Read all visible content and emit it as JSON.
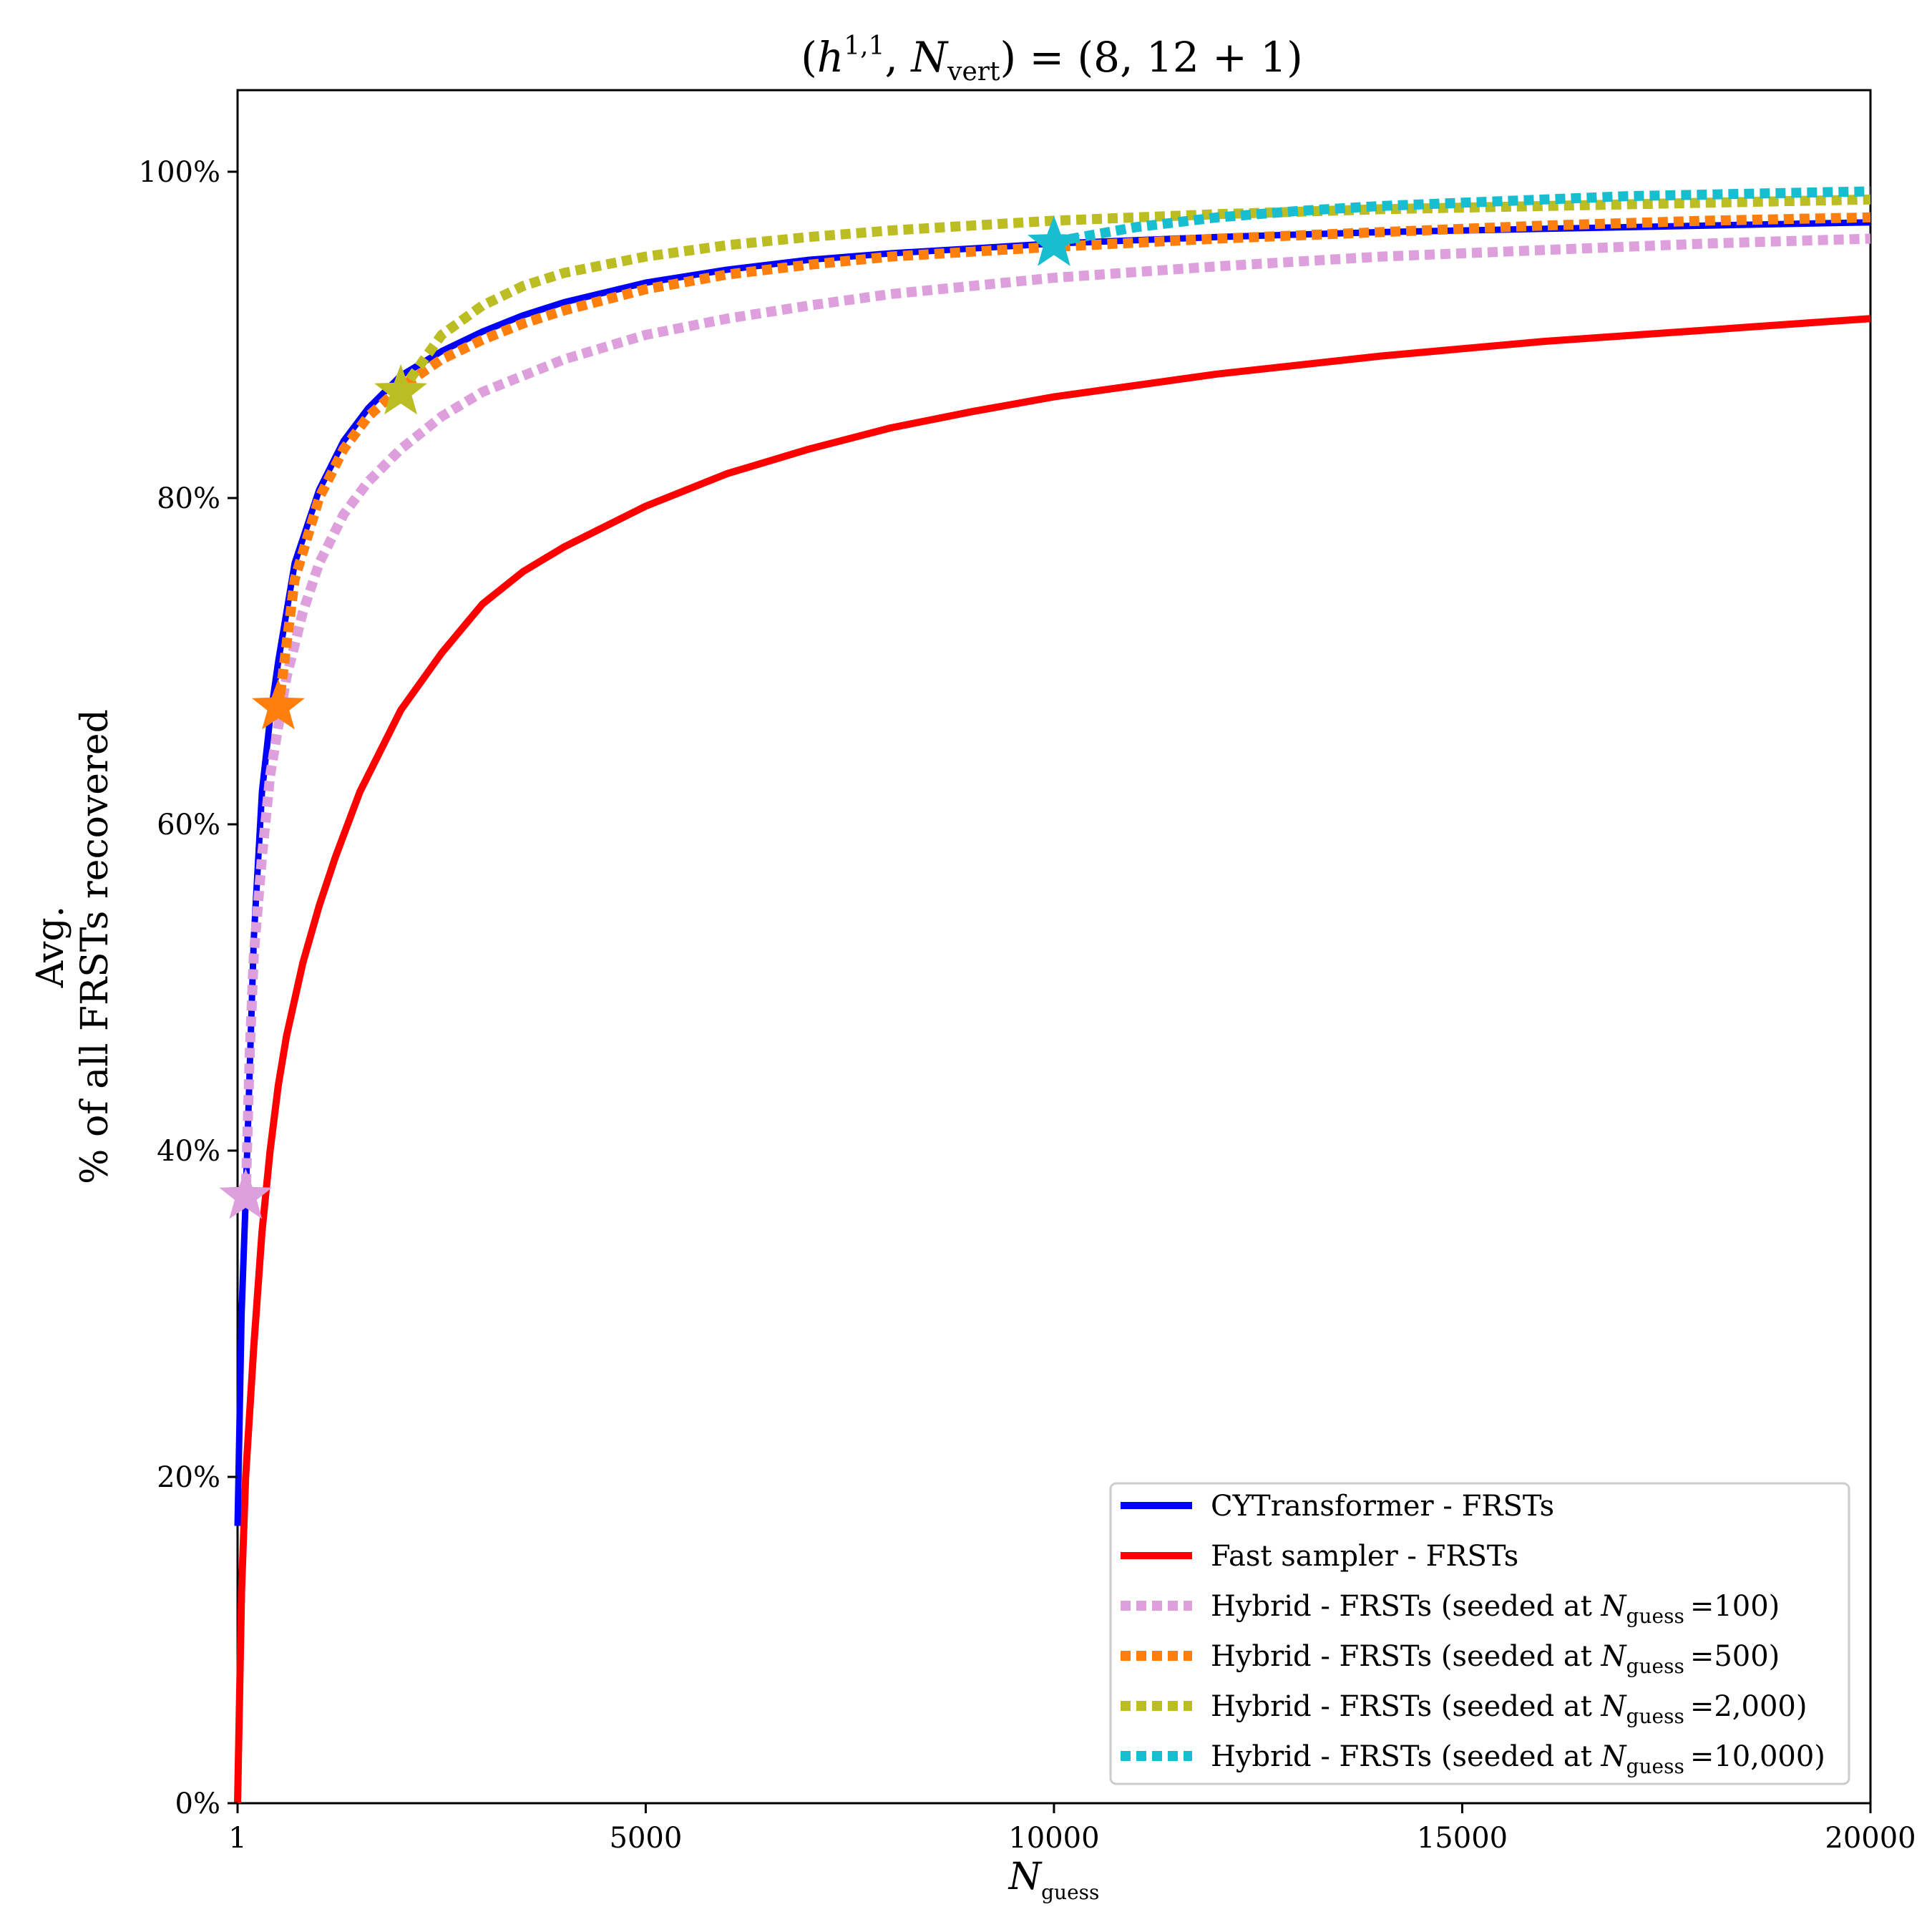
{
  "chart_data": {
    "type": "line",
    "title": "(h^{1,1}, N_vert) = (8, 12 + 1)",
    "title_parts": {
      "open": "(",
      "h": "h",
      "h_sup": "1,1",
      "comma": ", ",
      "N": "N",
      "N_sub": "vert",
      "rest": ") = (8, 12 + 1)"
    },
    "xlabel": "N_guess",
    "xlabel_parts": {
      "N": "N",
      "sub": "guess"
    },
    "ylabel_line1": "Avg.",
    "ylabel_line2": "% of all FRSTs recovered",
    "xlim": [
      1,
      20000
    ],
    "ylim": [
      0,
      105
    ],
    "xticks": [
      1,
      5000,
      10000,
      15000,
      20000
    ],
    "xtick_labels": [
      "1",
      "5000",
      "10000",
      "15000",
      "20000"
    ],
    "yticks": [
      0,
      20,
      40,
      60,
      80,
      100
    ],
    "ytick_labels": [
      "0%",
      "20%",
      "40%",
      "60%",
      "80%",
      "100%"
    ],
    "grid": false,
    "legend_position": "lower-right",
    "series": [
      {
        "name": "CYTransformer - FRSTs",
        "label_text": "CYTransformer - FRSTs",
        "color": "#0000ff",
        "style": "solid",
        "x": [
          1,
          50,
          100,
          150,
          200,
          300,
          400,
          500,
          700,
          1000,
          1300,
          1600,
          2000,
          2500,
          3000,
          3500,
          4000,
          5000,
          6000,
          7000,
          8000,
          9000,
          10000,
          12000,
          14000,
          16000,
          18000,
          20000
        ],
        "y": [
          17,
          30,
          37,
          45,
          53,
          62,
          66.5,
          70,
          76,
          80.5,
          83.5,
          85.5,
          87.5,
          89,
          90.2,
          91.2,
          92,
          93.2,
          94,
          94.6,
          95,
          95.3,
          95.6,
          96,
          96.3,
          96.5,
          96.7,
          96.9
        ]
      },
      {
        "name": "Fast sampler - FRSTs",
        "label_text": "Fast sampler - FRSTs",
        "color": "#ff0000",
        "style": "solid",
        "x": [
          1,
          50,
          100,
          200,
          300,
          400,
          500,
          600,
          800,
          1000,
          1200,
          1500,
          2000,
          2500,
          3000,
          3500,
          4000,
          5000,
          6000,
          7000,
          8000,
          9000,
          10000,
          12000,
          14000,
          16000,
          18000,
          20000
        ],
        "y": [
          0,
          13,
          20,
          28,
          35,
          40,
          44,
          47,
          51.5,
          55,
          58,
          62,
          67,
          70.5,
          73.5,
          75.5,
          77,
          79.5,
          81.5,
          83,
          84.3,
          85.3,
          86.2,
          87.6,
          88.7,
          89.6,
          90.3,
          91
        ]
      },
      {
        "name": "Hybrid - FRSTs (seeded at N_guess =100)",
        "label_text": "Hybrid - FRSTs (seeded at ",
        "label_N": "N",
        "label_sub": "guess",
        "label_val": "=100)",
        "color": "#dda0dd",
        "style": "dotted",
        "x": [
          100,
          150,
          200,
          300,
          400,
          500,
          600,
          700,
          800,
          1000,
          1300,
          1600,
          2000,
          2500,
          3000,
          3500,
          4000,
          5000,
          6000,
          7000,
          8000,
          9000,
          10000,
          12000,
          14000,
          16000,
          18000,
          20000
        ],
        "y": [
          37,
          46,
          52,
          58,
          63,
          66,
          69,
          71,
          73,
          76,
          79,
          81,
          83,
          85,
          86.5,
          87.5,
          88.5,
          90,
          91,
          91.8,
          92.5,
          93,
          93.5,
          94.2,
          94.8,
          95.2,
          95.6,
          95.9
        ]
      },
      {
        "name": "Hybrid - FRSTs (seeded at N_guess =500)",
        "label_text": "Hybrid - FRSTs (seeded at ",
        "label_N": "N",
        "label_sub": "guess",
        "label_val": "=500)",
        "color": "#ff7f0e",
        "style": "dotted",
        "x": [
          500,
          700,
          1000,
          1300,
          1600,
          2000,
          2500,
          3000,
          3500,
          4000,
          5000,
          6000,
          7000,
          8000,
          9000,
          10000,
          12000,
          14000,
          16000,
          18000,
          20000
        ],
        "y": [
          67,
          75,
          80,
          83,
          85,
          86.8,
          88.5,
          89.7,
          90.7,
          91.5,
          92.8,
          93.7,
          94.3,
          94.8,
          95.1,
          95.4,
          95.9,
          96.3,
          96.7,
          97,
          97.2
        ]
      },
      {
        "name": "Hybrid - FRSTs (seeded at N_guess =2,000)",
        "label_text": "Hybrid - FRSTs (seeded at ",
        "label_N": "N",
        "label_sub": "guess",
        "label_val": "=2,000)",
        "color": "#bcbd22",
        "style": "dotted",
        "x": [
          2000,
          2500,
          3000,
          3500,
          4000,
          5000,
          6000,
          7000,
          8000,
          9000,
          10000,
          12000,
          14000,
          16000,
          18000,
          20000
        ],
        "y": [
          86.5,
          90,
          91.8,
          93,
          93.8,
          94.8,
          95.5,
          96,
          96.4,
          96.7,
          97,
          97.4,
          97.7,
          97.9,
          98.1,
          98.3
        ]
      },
      {
        "name": "Hybrid - FRSTs (seeded at N_guess =10,000)",
        "label_text": "Hybrid - FRSTs (seeded at ",
        "label_N": "N",
        "label_sub": "guess",
        "label_val": "=10,000)",
        "color": "#17becf",
        "style": "dotted",
        "x": [
          10000,
          11000,
          12000,
          13000,
          14000,
          15000,
          16000,
          17000,
          18000,
          19000,
          20000
        ],
        "y": [
          95.7,
          96.6,
          97.2,
          97.6,
          97.9,
          98.1,
          98.3,
          98.5,
          98.6,
          98.7,
          98.8
        ]
      }
    ],
    "markers": [
      {
        "x": 100,
        "y": 37.2,
        "color": "#dda0dd",
        "shape": "star"
      },
      {
        "x": 500,
        "y": 67.2,
        "color": "#ff7f0e",
        "shape": "star"
      },
      {
        "x": 2000,
        "y": 86.5,
        "color": "#bcbd22",
        "shape": "star"
      },
      {
        "x": 10000,
        "y": 95.6,
        "color": "#17becf",
        "shape": "star"
      }
    ]
  }
}
